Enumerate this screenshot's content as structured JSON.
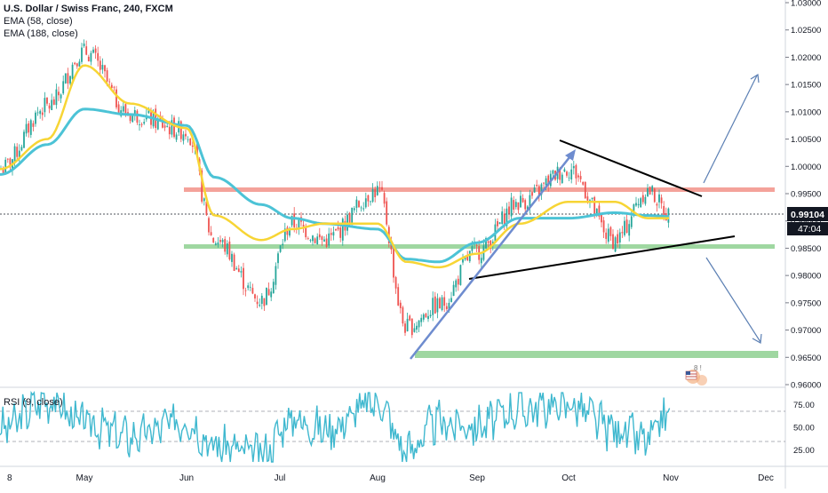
{
  "header": {
    "title": "U.S. Dollar / Swiss Franc, 240, FXCM",
    "ema_fast": "EMA (58, close)",
    "ema_slow": "EMA (188, close)",
    "rsi_label": "RSI (9, close)"
  },
  "price_badge": {
    "last": "0.99104",
    "countdown": "47:04"
  },
  "colors": {
    "ema_fast": "#f7d535",
    "ema_slow": "#4cc3d6",
    "resistance_zone": "#f4a29a",
    "support_zone": "#9fd7a1",
    "target_zone": "#9fd7a1",
    "candle_up": "#26a69a",
    "candle_down": "#ef5350",
    "rsi_line": "#3fb8cf",
    "arrows": "#5b7fb3",
    "trend_arrow": "#6e8ccf",
    "triangle_lines": "#000000"
  },
  "chart_data": [
    {
      "type": "line",
      "title": "U.S. Dollar / Swiss Franc, 240, FXCM",
      "xlabel": "",
      "ylabel": "",
      "x_ticks": [
        "8",
        "May",
        "Jun",
        "Jul",
        "Aug",
        "Sep",
        "Oct",
        "Nov",
        "Dec"
      ],
      "y_ticks": [
        "0.96000",
        "0.96500",
        "0.97000",
        "0.97500",
        "0.98000",
        "0.98500",
        "0.99000",
        "0.99500",
        "1.00000",
        "1.00500",
        "1.01000",
        "1.01500",
        "1.02000",
        "1.02500",
        "1.03000"
      ],
      "ylim": [
        0.96,
        1.03
      ],
      "series": [
        {
          "name": "EMA (58, close)",
          "x": [
            "Apr 8",
            "Apr 22",
            "May 1",
            "May 15",
            "Jun 1",
            "Jun 10",
            "Jun 25",
            "Jul 5",
            "Jul 15",
            "Aug 1",
            "Aug 10",
            "Aug 20",
            "Sep 1",
            "Sep 15",
            "Oct 1",
            "Oct 15",
            "Oct 25",
            "Nov 1"
          ],
          "values": [
            0.9995,
            1.005,
            1.0185,
            1.0115,
            1.007,
            0.991,
            0.9865,
            0.9885,
            0.9895,
            0.9895,
            0.9825,
            0.9815,
            0.984,
            0.9895,
            0.9935,
            0.9935,
            0.9905,
            0.9905
          ]
        },
        {
          "name": "EMA (188, close)",
          "x": [
            "Apr 8",
            "Apr 22",
            "May 1",
            "May 15",
            "Jun 1",
            "Jun 10",
            "Jun 25",
            "Jul 5",
            "Jul 15",
            "Aug 1",
            "Aug 10",
            "Aug 20",
            "Sep 1",
            "Sep 15",
            "Oct 1",
            "Oct 15",
            "Oct 25",
            "Nov 1"
          ],
          "values": [
            0.9985,
            1.004,
            1.0105,
            1.0095,
            1.0075,
            0.998,
            0.993,
            0.9905,
            0.9895,
            0.9885,
            0.983,
            0.9825,
            0.986,
            0.9905,
            0.9905,
            0.9915,
            0.991,
            0.9908
          ]
        },
        {
          "name": "Price",
          "x": [
            "Apr 8",
            "Apr 22",
            "May 1",
            "May 15",
            "Jun 1",
            "Jun 10",
            "Jun 25",
            "Jul 5",
            "Jul 15",
            "Aug 1",
            "Aug 10",
            "Aug 20",
            "Sep 1",
            "Sep 15",
            "Oct 1",
            "Oct 15",
            "Oct 25",
            "Nov 1"
          ],
          "values": [
            0.9995,
            1.011,
            1.021,
            1.0095,
            1.0065,
            0.9865,
            0.9755,
            0.9895,
            0.9865,
            0.9955,
            0.9705,
            0.9745,
            0.9845,
            0.9935,
            0.9995,
            0.9865,
            0.9955,
            0.991
          ]
        }
      ],
      "annotations": {
        "resistance_level": 0.9955,
        "support_level": 0.9852,
        "target_zone": [
          0.9655,
          0.9665
        ],
        "last_price": 0.99104,
        "triangle_upper": {
          "from": [
            "Sep 25",
            1.0045
          ],
          "to": [
            "Nov 5",
            0.9935
          ]
        },
        "triangle_lower": {
          "from": [
            "Aug 25",
            0.9795
          ],
          "to": [
            "Nov 12",
            0.9868
          ]
        },
        "trend_arrow": {
          "from": [
            "Aug 12",
            0.9655
          ],
          "to": [
            "Oct 1",
            1.004
          ]
        }
      }
    },
    {
      "type": "line",
      "title": "RSI (9, close)",
      "xlabel": "",
      "ylabel": "",
      "y_ticks": [
        "25.00",
        "50.00",
        "75.00"
      ],
      "ylim": [
        10,
        90
      ],
      "series": [
        {
          "name": "RSI (9, close)",
          "x": [
            "Apr 8",
            "Apr 22",
            "May 1",
            "May 15",
            "Jun 1",
            "Jun 10",
            "Jun 25",
            "Jul 5",
            "Jul 15",
            "Aug 1",
            "Aug 10",
            "Aug 20",
            "Sep 1",
            "Sep 15",
            "Oct 1",
            "Oct 15",
            "Oct 25",
            "Nov 1"
          ],
          "values": [
            48,
            80,
            55,
            40,
            58,
            30,
            20,
            60,
            48,
            78,
            25,
            55,
            52,
            70,
            75,
            48,
            35,
            68
          ]
        }
      ]
    }
  ]
}
